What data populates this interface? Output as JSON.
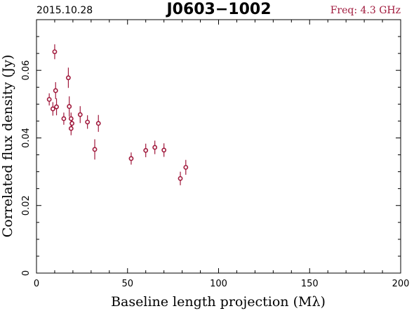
{
  "header": {
    "date": "2015.10.28",
    "title": "J0603−1002",
    "freq": "Freq: 4.3 GHz"
  },
  "colors": {
    "point": "#a0193c",
    "freq_text": "#a0193c",
    "axes": "#000000"
  },
  "chart_data": {
    "type": "scatter",
    "title": "J0603−1002",
    "xlabel": "Baseline length projection (Mλ)",
    "ylabel": "Correlated flux density (Jy)",
    "xlim": [
      0,
      200
    ],
    "ylim": [
      0,
      0.075
    ],
    "xticks": [
      0,
      50,
      100,
      150,
      200
    ],
    "xtick_labels": [
      "0",
      "50",
      "100",
      "150",
      "200"
    ],
    "yticks": [
      0,
      0.02,
      0.04,
      0.06
    ],
    "ytick_labels": [
      "0",
      "0.02",
      "0.04",
      "0.06"
    ],
    "grid": false,
    "points": [
      {
        "x": 7.0,
        "y": 0.0514,
        "err": 0.0018
      },
      {
        "x": 9.0,
        "y": 0.0486,
        "err": 0.002
      },
      {
        "x": 10.0,
        "y": 0.0655,
        "err": 0.0022
      },
      {
        "x": 10.5,
        "y": 0.054,
        "err": 0.0025
      },
      {
        "x": 11.0,
        "y": 0.0492,
        "err": 0.0025
      },
      {
        "x": 15.0,
        "y": 0.0457,
        "err": 0.0018
      },
      {
        "x": 17.5,
        "y": 0.0578,
        "err": 0.003
      },
      {
        "x": 18.0,
        "y": 0.0493,
        "err": 0.003
      },
      {
        "x": 19.0,
        "y": 0.0457,
        "err": 0.0018
      },
      {
        "x": 19.5,
        "y": 0.0443,
        "err": 0.002
      },
      {
        "x": 19.0,
        "y": 0.0428,
        "err": 0.002
      },
      {
        "x": 24.0,
        "y": 0.0469,
        "err": 0.0025
      },
      {
        "x": 28.0,
        "y": 0.0447,
        "err": 0.002
      },
      {
        "x": 32.0,
        "y": 0.0366,
        "err": 0.003
      },
      {
        "x": 34.0,
        "y": 0.0443,
        "err": 0.0025
      },
      {
        "x": 52.0,
        "y": 0.0339,
        "err": 0.0018
      },
      {
        "x": 60.0,
        "y": 0.0363,
        "err": 0.002
      },
      {
        "x": 65.0,
        "y": 0.0372,
        "err": 0.002
      },
      {
        "x": 70.0,
        "y": 0.0364,
        "err": 0.002
      },
      {
        "x": 79.0,
        "y": 0.028,
        "err": 0.002
      },
      {
        "x": 82.0,
        "y": 0.0313,
        "err": 0.0022
      }
    ]
  }
}
